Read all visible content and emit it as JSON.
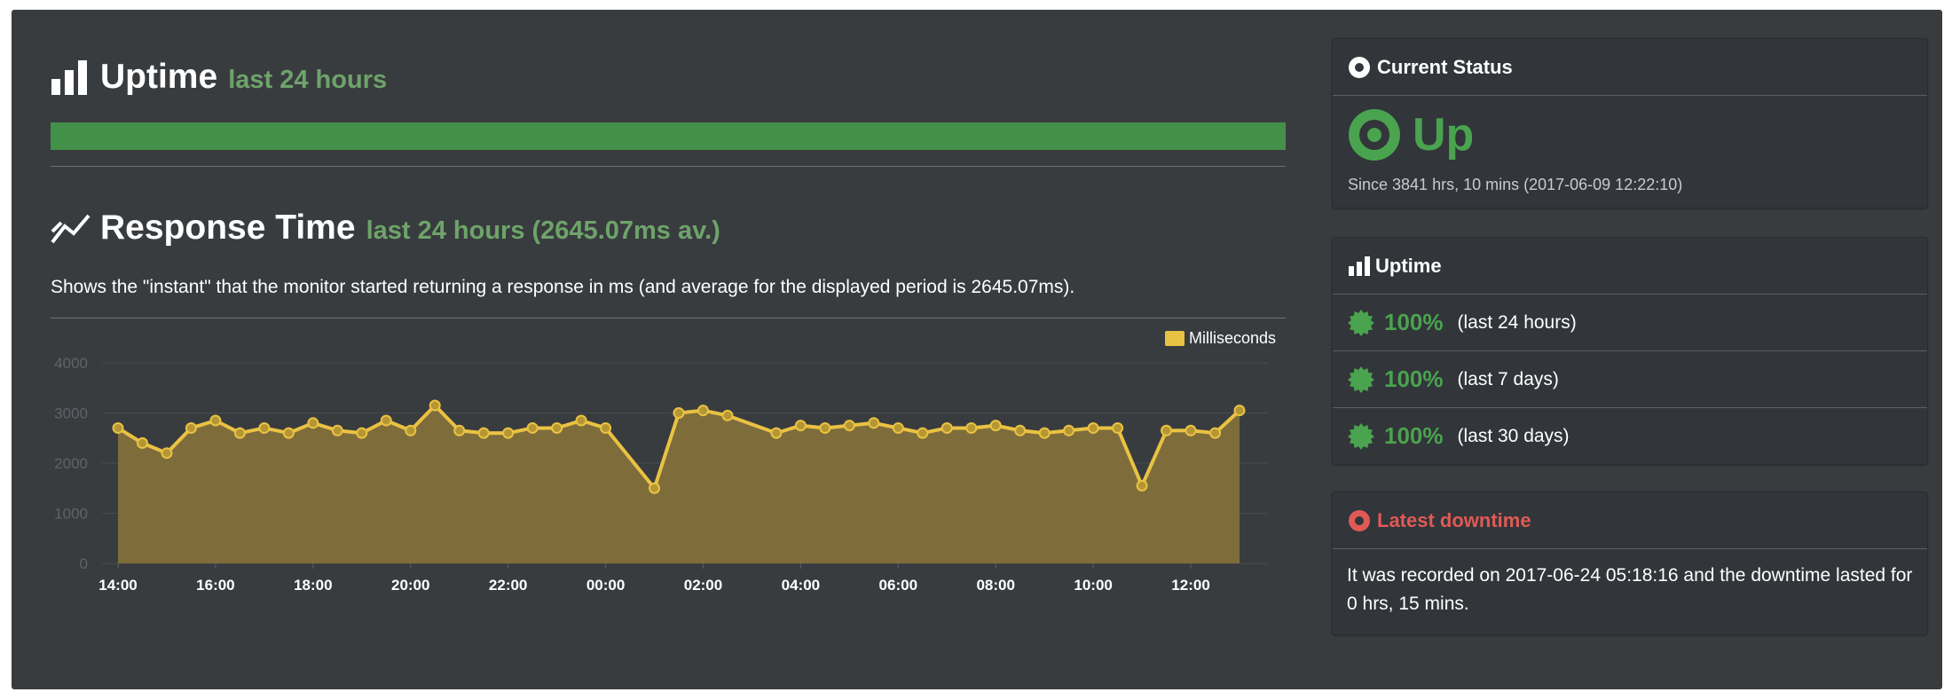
{
  "uptime_section": {
    "title": "Uptime",
    "subtitle": "last 24 hours",
    "uptime_fraction": 1.0,
    "bar_color": "#43904a"
  },
  "response_section": {
    "title": "Response Time",
    "subtitle": "last 24 hours (2645.07ms av.)",
    "description": "Shows the \"instant\" that the monitor started returning a response in ms (and average for the displayed period is 2645.07ms).",
    "legend_label": "Milliseconds"
  },
  "chart_data": {
    "type": "area",
    "ylim": [
      0,
      4000
    ],
    "y_ticks": [
      "0",
      "1000",
      "2000",
      "3000",
      "4000"
    ],
    "x_range_minutes": [
      840,
      2220
    ],
    "x_ticks": [
      {
        "minutes": 840,
        "label": "14:00"
      },
      {
        "minutes": 960,
        "label": "16:00"
      },
      {
        "minutes": 1080,
        "label": "18:00"
      },
      {
        "minutes": 1200,
        "label": "20:00"
      },
      {
        "minutes": 1320,
        "label": "22:00"
      },
      {
        "minutes": 1440,
        "label": "00:00"
      },
      {
        "minutes": 1560,
        "label": "02:00"
      },
      {
        "minutes": 1680,
        "label": "04:00"
      },
      {
        "minutes": 1800,
        "label": "06:00"
      },
      {
        "minutes": 1920,
        "label": "08:00"
      },
      {
        "minutes": 2040,
        "label": "10:00"
      },
      {
        "minutes": 2160,
        "label": "12:00"
      }
    ],
    "series": [
      {
        "name": "Milliseconds",
        "color": "#eac243",
        "fill": "#7e6d3b",
        "points": [
          [
            840,
            2700
          ],
          [
            870,
            2400
          ],
          [
            900,
            2200
          ],
          [
            930,
            2700
          ],
          [
            960,
            2850
          ],
          [
            990,
            2600
          ],
          [
            1020,
            2700
          ],
          [
            1050,
            2600
          ],
          [
            1080,
            2800
          ],
          [
            1110,
            2650
          ],
          [
            1140,
            2600
          ],
          [
            1170,
            2850
          ],
          [
            1200,
            2650
          ],
          [
            1230,
            3150
          ],
          [
            1260,
            2650
          ],
          [
            1290,
            2600
          ],
          [
            1320,
            2600
          ],
          [
            1350,
            2700
          ],
          [
            1380,
            2700
          ],
          [
            1410,
            2850
          ],
          [
            1440,
            2700
          ],
          [
            1500,
            1500
          ],
          [
            1530,
            3000
          ],
          [
            1560,
            3050
          ],
          [
            1590,
            2950
          ],
          [
            1650,
            2600
          ],
          [
            1680,
            2750
          ],
          [
            1710,
            2700
          ],
          [
            1740,
            2750
          ],
          [
            1770,
            2800
          ],
          [
            1800,
            2700
          ],
          [
            1830,
            2600
          ],
          [
            1860,
            2700
          ],
          [
            1890,
            2700
          ],
          [
            1920,
            2750
          ],
          [
            1950,
            2650
          ],
          [
            1980,
            2600
          ],
          [
            2010,
            2650
          ],
          [
            2040,
            2700
          ],
          [
            2070,
            2700
          ],
          [
            2100,
            1550
          ],
          [
            2130,
            2650
          ],
          [
            2160,
            2650
          ],
          [
            2190,
            2600
          ],
          [
            2220,
            3050
          ]
        ]
      }
    ]
  },
  "current_status": {
    "header": "Current Status",
    "status": "Up",
    "since": "Since 3841 hrs, 10 mins (2017-06-09 12:22:10)",
    "color": "#4aa34e"
  },
  "uptime_card": {
    "header": "Uptime",
    "rows": [
      {
        "value": "100%",
        "label": "(last 24 hours)"
      },
      {
        "value": "100%",
        "label": "(last 7 days)"
      },
      {
        "value": "100%",
        "label": "(last 30 days)"
      }
    ]
  },
  "latest_downtime": {
    "header": "Latest downtime",
    "text": "It was recorded on 2017-06-24 05:18:16 and the downtime lasted for 0 hrs, 15 mins.",
    "color": "#d9534f"
  }
}
